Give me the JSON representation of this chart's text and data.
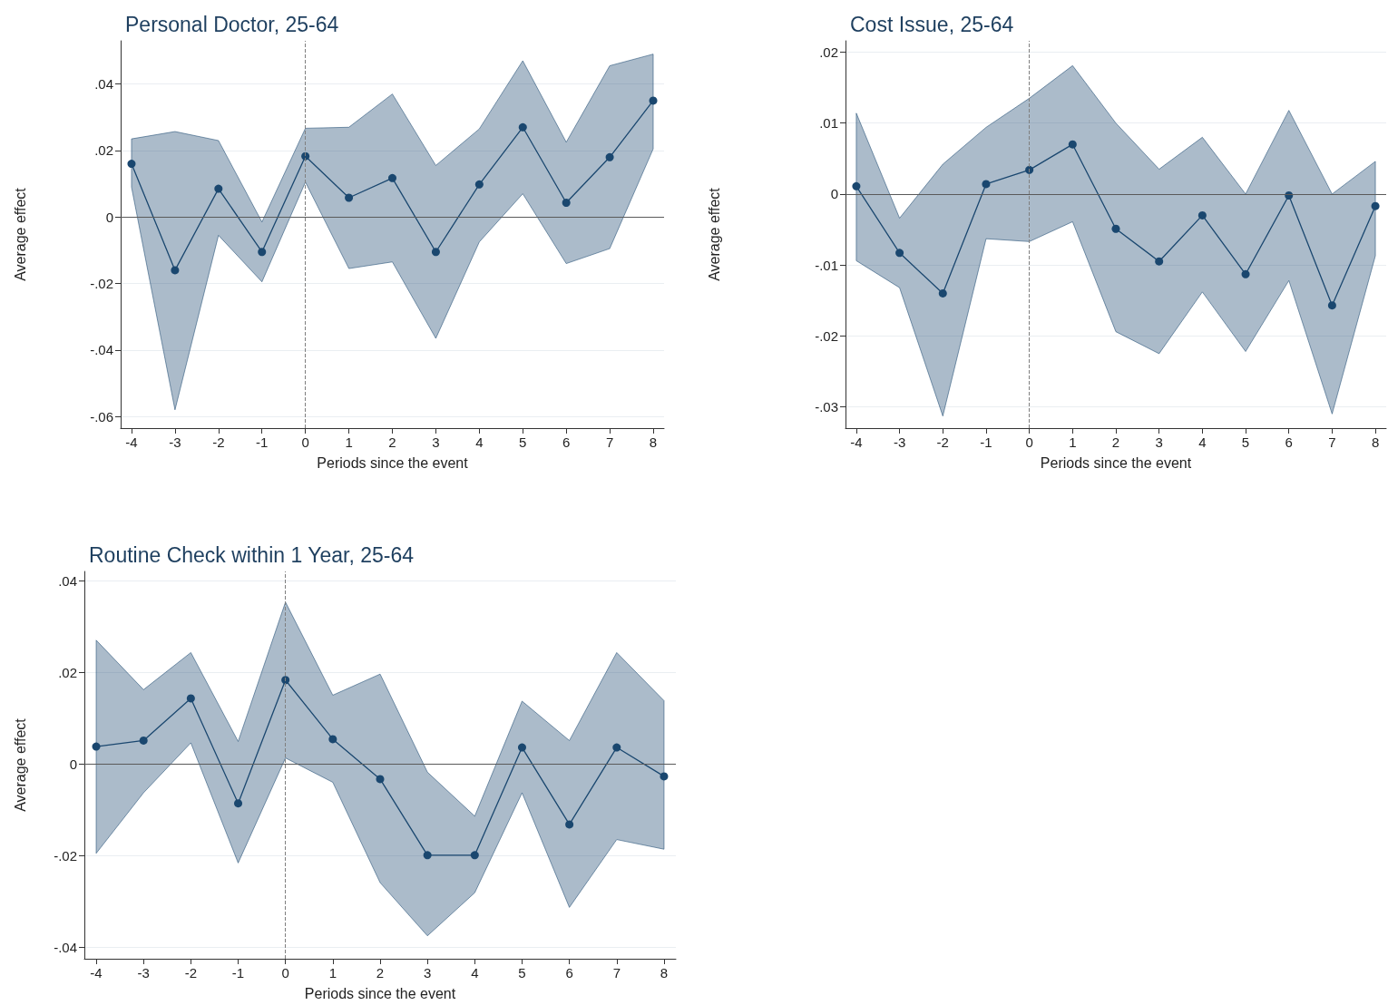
{
  "chart_data": [
    {
      "type": "line",
      "title": "Personal Doctor, 25-64",
      "xlabel": "Periods since the event",
      "ylabel": "Average effect",
      "x": [
        -4,
        -3,
        -2,
        -1,
        0,
        1,
        2,
        3,
        4,
        5,
        6,
        7,
        8
      ],
      "series": [
        {
          "color": "#1a476f",
          "values": [
            0.016,
            -0.016,
            0.0085,
            -0.0105,
            0.0183,
            0.0058,
            0.0117,
            -0.0105,
            0.0098,
            0.027,
            0.0043,
            0.018,
            0.035
          ],
          "lower": [
            0.009,
            -0.058,
            -0.0055,
            -0.0195,
            0.0105,
            -0.0155,
            -0.0135,
            -0.0365,
            -0.0075,
            0.007,
            -0.014,
            -0.0095,
            0.0205
          ],
          "upper": [
            0.0235,
            0.0257,
            0.023,
            -0.0015,
            0.0267,
            0.027,
            0.037,
            0.0155,
            0.0265,
            0.047,
            0.0225,
            0.0455,
            0.049
          ]
        }
      ],
      "xlim": [
        -4.25,
        8.25
      ],
      "xticks": [
        -4,
        -3,
        -2,
        -1,
        0,
        1,
        2,
        3,
        4,
        5,
        6,
        7,
        8
      ],
      "ylim": [
        -0.0635,
        0.053
      ],
      "yticks": [
        {
          "value": -0.06,
          "label": "-.06"
        },
        {
          "value": -0.04,
          "label": "-.04"
        },
        {
          "value": -0.02,
          "label": "-.02"
        },
        {
          "value": 0,
          "label": "0"
        },
        {
          "value": 0.02,
          "label": ".02"
        },
        {
          "value": 0.04,
          "label": ".04"
        }
      ],
      "ref_lines": [
        {
          "axis": "x",
          "value": 0,
          "line_style": "dashed",
          "color": "#7f7f7f"
        },
        {
          "axis": "y",
          "value": 0,
          "line_style": "solid",
          "color": "#5a5a5a"
        }
      ],
      "grid": "y",
      "marker": "circle"
    },
    {
      "type": "line",
      "title": "Cost Issue, 25-64",
      "xlabel": "Periods since the event",
      "ylabel": "Average effect",
      "x": [
        -4,
        -3,
        -2,
        -1,
        0,
        1,
        2,
        3,
        4,
        5,
        6,
        7,
        8
      ],
      "series": [
        {
          "color": "#1a476f",
          "values": [
            0.0011,
            -0.0083,
            -0.014,
            0.0014,
            0.0034,
            0.007,
            -0.0049,
            -0.0095,
            -0.003,
            -0.0113,
            -0.0002,
            -0.0157,
            -0.0017
          ],
          "lower": [
            -0.0094,
            -0.0132,
            -0.0313,
            -0.0063,
            -0.0067,
            -0.0039,
            -0.0194,
            -0.0225,
            -0.0138,
            -0.0222,
            -0.0122,
            -0.031,
            -0.0087
          ],
          "upper": [
            0.0114,
            -0.0034,
            0.0042,
            0.0094,
            0.0135,
            0.0181,
            0.01,
            0.0035,
            0.008,
            0.0,
            0.0118,
            0.0,
            0.0046
          ]
        }
      ],
      "xlim": [
        -4.25,
        8.25
      ],
      "xticks": [
        -4,
        -3,
        -2,
        -1,
        0,
        1,
        2,
        3,
        4,
        5,
        6,
        7,
        8
      ],
      "ylim": [
        -0.033,
        0.0216
      ],
      "yticks": [
        {
          "value": -0.03,
          "label": "-.03"
        },
        {
          "value": -0.02,
          "label": "-.02"
        },
        {
          "value": -0.01,
          "label": "-.01"
        },
        {
          "value": 0,
          "label": "0"
        },
        {
          "value": 0.01,
          "label": ".01"
        },
        {
          "value": 0.02,
          "label": ".02"
        }
      ],
      "ref_lines": [
        {
          "axis": "x",
          "value": 0,
          "line_style": "dashed",
          "color": "#7f7f7f"
        },
        {
          "axis": "y",
          "value": 0,
          "line_style": "solid",
          "color": "#5a5a5a"
        }
      ],
      "grid": "y",
      "marker": "circle"
    },
    {
      "type": "line",
      "title": "Routine Check within 1 Year, 25-64",
      "xlabel": "Periods since the event",
      "ylabel": "Average effect",
      "x": [
        -4,
        -3,
        -2,
        -1,
        0,
        1,
        2,
        3,
        4,
        5,
        6,
        7,
        8
      ],
      "series": [
        {
          "color": "#1a476f",
          "values": [
            0.0038,
            0.0051,
            0.0143,
            -0.0086,
            0.0183,
            0.0054,
            -0.0033,
            -0.0199,
            -0.0199,
            0.0036,
            -0.0132,
            0.0036,
            -0.0027
          ],
          "lower": [
            -0.0195,
            -0.0063,
            0.0046,
            -0.0216,
            0.0013,
            -0.004,
            -0.0259,
            -0.0375,
            -0.0281,
            -0.0063,
            -0.0313,
            -0.0165,
            -0.0186
          ],
          "upper": [
            0.027,
            0.0162,
            0.0243,
            0.0049,
            0.0353,
            0.015,
            0.0196,
            -0.0018,
            -0.0114,
            0.0137,
            0.0051,
            0.0243,
            0.0138
          ]
        }
      ],
      "xlim": [
        -4.25,
        8.25
      ],
      "xticks": [
        -4,
        -3,
        -2,
        -1,
        0,
        1,
        2,
        3,
        4,
        5,
        6,
        7,
        8
      ],
      "ylim": [
        -0.0425,
        0.042
      ],
      "yticks": [
        {
          "value": -0.04,
          "label": "-.04"
        },
        {
          "value": -0.02,
          "label": "-.02"
        },
        {
          "value": 0,
          "label": "0"
        },
        {
          "value": 0.02,
          "label": ".02"
        },
        {
          "value": 0.04,
          "label": ".04"
        }
      ],
      "ref_lines": [
        {
          "axis": "x",
          "value": 0,
          "line_style": "dashed",
          "color": "#7f7f7f"
        },
        {
          "axis": "y",
          "value": 0,
          "line_style": "solid",
          "color": "#5a5a5a"
        }
      ],
      "grid": "y",
      "marker": "circle"
    }
  ]
}
